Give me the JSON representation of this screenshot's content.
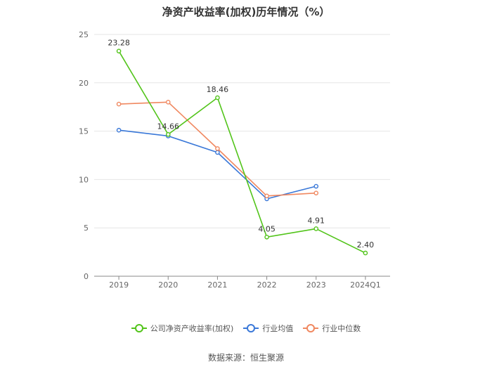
{
  "chart_data": {
    "type": "line",
    "title": "净资产收益率(加权)历年情况（%）",
    "categories": [
      "2019",
      "2020",
      "2021",
      "2022",
      "2023",
      "2024Q1"
    ],
    "ylim": [
      0,
      25
    ],
    "yticks": [
      0,
      5,
      10,
      15,
      20,
      25
    ],
    "grid": true,
    "legend_position": "bottom",
    "series": [
      {
        "name": "公司净资产收益率(加权)",
        "color": "#52c41a",
        "values": [
          23.28,
          14.66,
          18.46,
          4.05,
          4.91,
          2.4
        ],
        "labels": [
          "23.28",
          "14.66",
          "18.46",
          "4.05",
          "4.91",
          "2.40"
        ]
      },
      {
        "name": "行业均值",
        "color": "#3a78d8",
        "values": [
          15.1,
          14.5,
          12.8,
          8.0,
          9.3,
          null
        ]
      },
      {
        "name": "行业中位数",
        "color": "#f08860",
        "values": [
          17.8,
          18.0,
          13.2,
          8.3,
          8.6,
          null
        ]
      }
    ]
  },
  "source": "数据来源：恒生聚源"
}
